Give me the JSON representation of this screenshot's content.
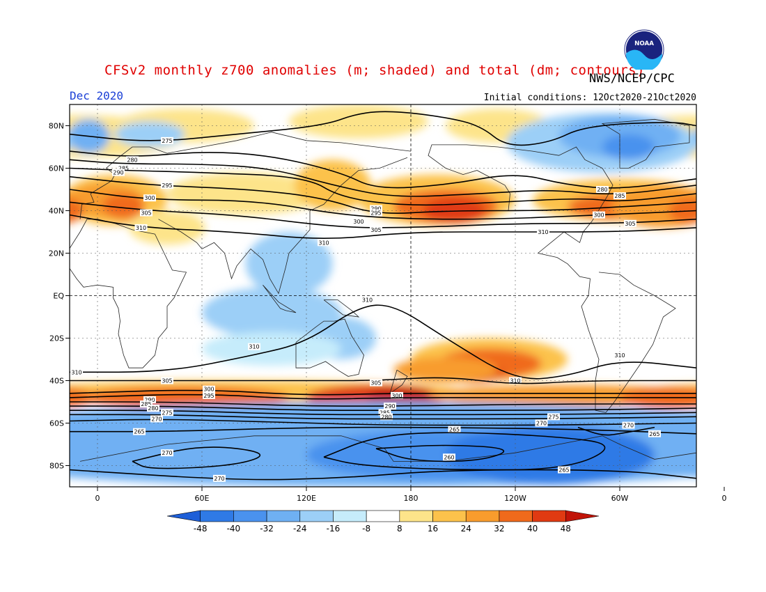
{
  "header": {
    "title": "CFSv2 monthly z700 anomalies (m; shaded) and total (dm; contours)",
    "agency": "NWS/NCEP/CPC",
    "valid_month": "Dec 2020",
    "initial_conditions": "Initial conditions: 12Oct2020-21Oct2020",
    "logo_text": "NOAA"
  },
  "map": {
    "projection": "cylindrical",
    "lon_range": [
      -16,
      344
    ],
    "lat_range": [
      -90,
      90
    ],
    "lat_labels": [
      "80N",
      "60N",
      "40N",
      "20N",
      "EQ",
      "20S",
      "40S",
      "60S",
      "80S"
    ],
    "lon_labels": [
      "0",
      "60E",
      "120E",
      "180",
      "120W",
      "60W",
      "0"
    ],
    "contour_labels": [
      "275",
      "280",
      "285",
      "290",
      "295",
      "300",
      "305",
      "310",
      "270",
      "260",
      "265"
    ],
    "contour_levels_dm": [
      260,
      265,
      270,
      275,
      280,
      285,
      290,
      295,
      300,
      305,
      310
    ]
  },
  "colorbar": {
    "labels": [
      "-48",
      "-40",
      "-32",
      "-24",
      "-16",
      "-8",
      "8",
      "16",
      "24",
      "32",
      "40",
      "48"
    ],
    "colors": [
      "#1e5fd8",
      "#2f7ae6",
      "#4a92ee",
      "#6fb0f3",
      "#9ccff7",
      "#c6ecfb",
      "#ffffff",
      "#fde48a",
      "#fcc24b",
      "#f89c2d",
      "#f06a1b",
      "#e03a12",
      "#c11408"
    ]
  }
}
